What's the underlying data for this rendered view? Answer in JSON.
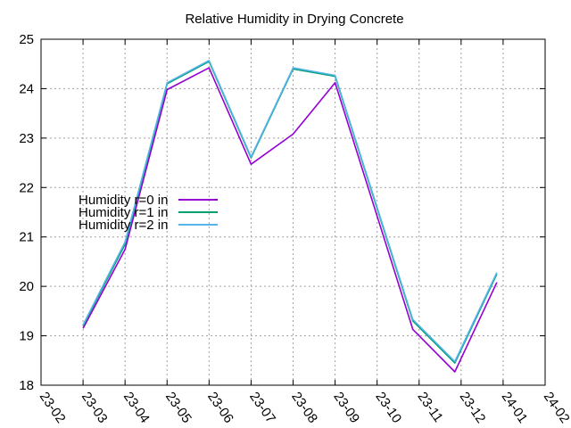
{
  "chart_data": {
    "type": "line",
    "title": "Relative Humidity in Drying Concrete",
    "xlabel": "",
    "ylabel": "",
    "x_ticks": [
      "23-02",
      "23-03",
      "23-04",
      "23-05",
      "23-06",
      "23-07",
      "23-08",
      "23-09",
      "23-10",
      "23-11",
      "23-12",
      "24-01",
      "24-02"
    ],
    "x": [
      "23-03",
      "23-04",
      "23-05",
      "23-06",
      "23-07",
      "23-08",
      "23-09",
      "23-11",
      "23-12",
      "24-01"
    ],
    "x_pos": [
      1.0,
      2.0,
      3.0,
      4.0,
      5.0,
      6.0,
      7.0,
      8.85,
      9.85,
      10.85
    ],
    "ylim": [
      18,
      25
    ],
    "y_ticks": [
      18,
      19,
      20,
      21,
      22,
      23,
      24,
      25
    ],
    "grid": true,
    "legend_position": "left-middle",
    "series": [
      {
        "name": "Humidity r=0 in",
        "color": "#9400d3",
        "values": [
          19.15,
          20.75,
          23.98,
          24.42,
          22.47,
          23.08,
          24.12,
          19.13,
          18.27,
          20.08
        ]
      },
      {
        "name": "Humidity r=1 in",
        "color": "#009e73",
        "values": [
          19.2,
          20.85,
          24.1,
          24.55,
          22.6,
          24.4,
          24.25,
          19.3,
          18.45,
          20.25
        ]
      },
      {
        "name": "Humidity r=2 in",
        "color": "#56b4e9",
        "values": [
          19.22,
          20.9,
          24.12,
          24.57,
          22.62,
          24.42,
          24.27,
          19.33,
          18.48,
          20.28
        ]
      }
    ]
  }
}
